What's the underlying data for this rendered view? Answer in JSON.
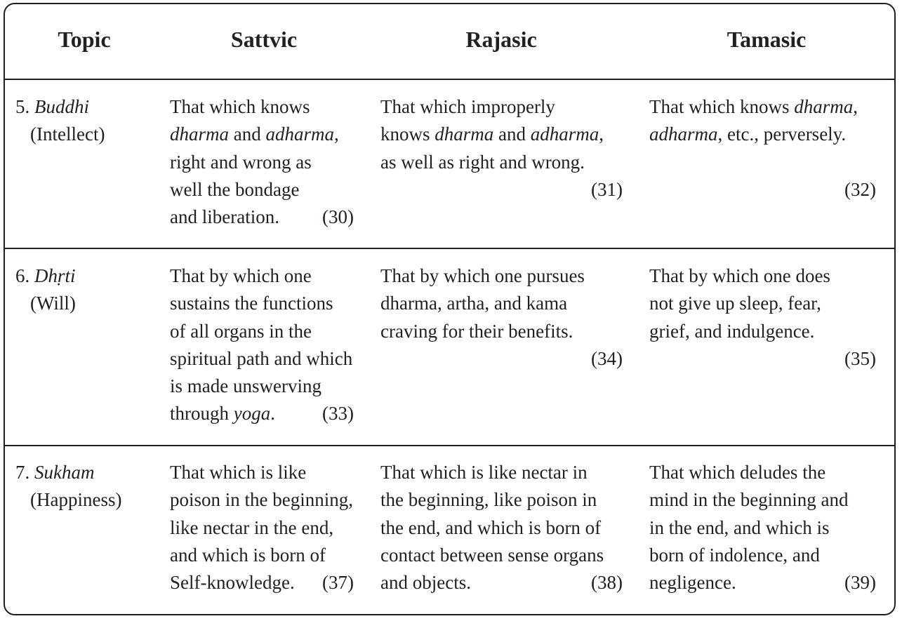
{
  "headers": {
    "topic": "Topic",
    "sattvic": "Sattvic",
    "rajasic": "Rajasic",
    "tamasic": "Tamasic"
  },
  "rows": [
    {
      "topic_number": "5.",
      "topic_term": "Buddhi",
      "topic_gloss": "(Intellect)",
      "sattvic": {
        "l1": "That which knows",
        "l2a": "dharma",
        "l2b": " and ",
        "l2c": "adharma",
        "l2d": ",",
        "l3": "right and wrong as",
        "l4": "well the bondage",
        "l5": "and liberation.",
        "ref": "(30)"
      },
      "rajasic": {
        "l1": "That which improperly",
        "l2a": "knows ",
        "l2b": "dharma",
        "l2c": " and ",
        "l2d": "adharma",
        "l2e": ",",
        "l3": "as well as right and wrong.",
        "ref": "(31)"
      },
      "tamasic": {
        "l1a": "That which knows ",
        "l1b": "dharma",
        "l1c": ",",
        "l2a": "adharma",
        "l2b": ", etc., perversely.",
        "ref": "(32)"
      }
    },
    {
      "topic_number": "6.",
      "topic_term": "Dhṛti",
      "topic_gloss": "(Will)",
      "sattvic": {
        "l1": "That by which one",
        "l2": "sustains the functions",
        "l3": "of all organs in the",
        "l4": "spiritual path and which",
        "l5": "is made unswerving",
        "l6a": "through ",
        "l6b": "yoga",
        "l6c": ".",
        "ref": "(33)"
      },
      "rajasic": {
        "l1": "That by which one pursues",
        "l2": "dharma, artha, and kama",
        "l3": "craving for their benefits.",
        "ref": "(34)"
      },
      "tamasic": {
        "l1": "That by which one does",
        "l2": "not give up sleep, fear,",
        "l3": "grief, and indulgence.",
        "ref": "(35)"
      }
    },
    {
      "topic_number": "7.",
      "topic_term": "Sukham",
      "topic_gloss": "(Happiness)",
      "sattvic": {
        "l1": "That which is like",
        "l2": "poison in the beginning,",
        "l3": "like nectar in the end,",
        "l4": "and which is born of",
        "l5": "Self-knowledge.",
        "ref": "(37)"
      },
      "rajasic": {
        "l1": "That which is like nectar in",
        "l2": "the beginning, like poison in",
        "l3": "the end, and which is born of",
        "l4": "contact between sense organs",
        "l5": "and objects.",
        "ref": "(38)"
      },
      "tamasic": {
        "l1": "That which deludes the",
        "l2": "mind in the beginning and",
        "l3": "in the end, and which is",
        "l4": "born of indolence, and",
        "l5": "negligence.",
        "ref": "(39)"
      }
    }
  ]
}
